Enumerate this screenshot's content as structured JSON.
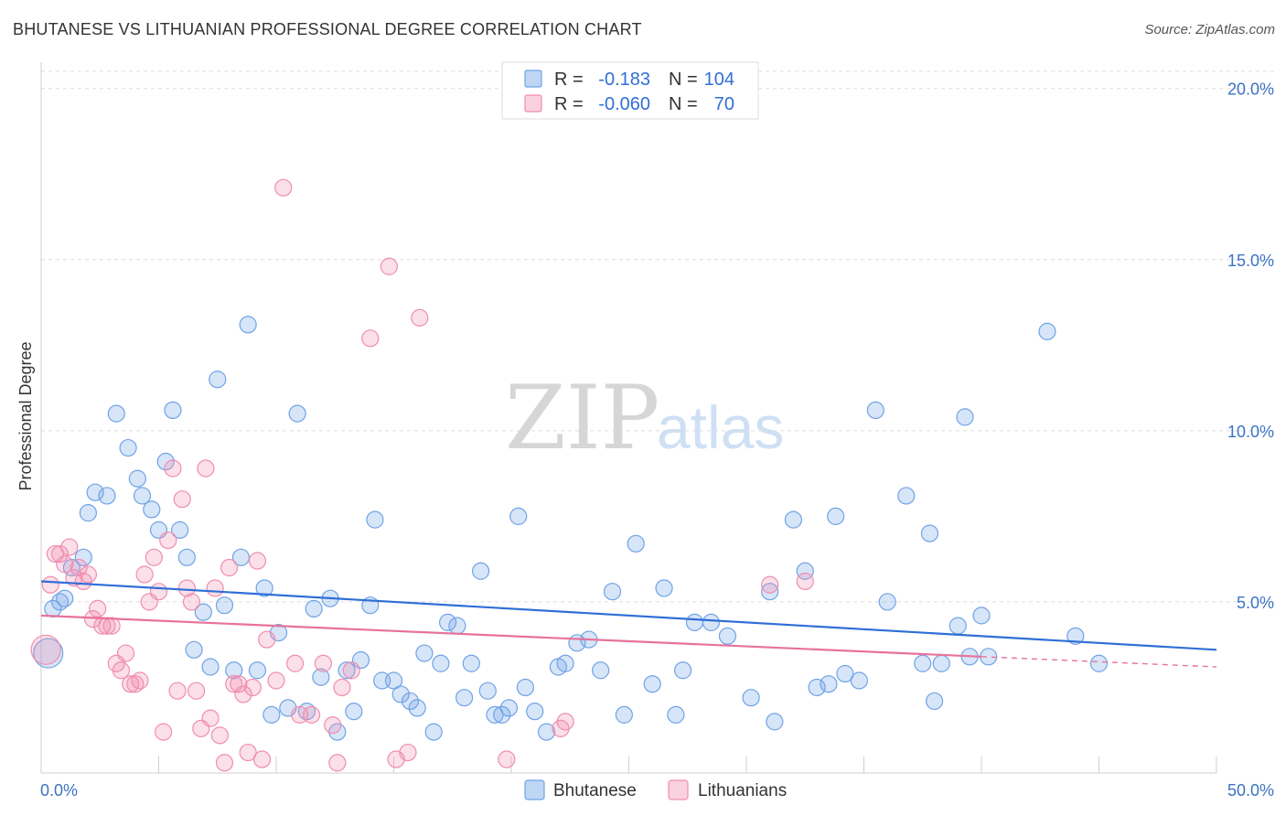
{
  "header": {
    "title": "BHUTANESE VS LITHUANIAN PROFESSIONAL DEGREE CORRELATION CHART",
    "source": "Source: ZipAtlas.com"
  },
  "legend": {
    "rows": [
      {
        "r_label": "R =",
        "r_value": "-0.183",
        "n_label": "N =",
        "n_value": "104",
        "color": "#6fa3e6"
      },
      {
        "r_label": "R =",
        "r_value": "-0.060",
        "n_label": "N =",
        "n_value": "70",
        "color": "#f08db0"
      }
    ]
  },
  "watermark": {
    "zip": "ZIP",
    "atlas": "atlas"
  },
  "chart_data": {
    "type": "scatter",
    "ylabel": "Professional Degree",
    "x_tick_labels": [
      "0.0%",
      "50.0%"
    ],
    "y_tick_labels": [
      "5.0%",
      "10.0%",
      "15.0%",
      "20.0%"
    ],
    "y_ticks": [
      5,
      10,
      15,
      20
    ],
    "xlim": [
      0,
      50
    ],
    "ylim": [
      0,
      20.5
    ],
    "grid": "horizontal dashed",
    "legend_placement": "top-center",
    "series": [
      {
        "name": "Bhutanese",
        "color": "#6fa3e6",
        "points": [
          [
            0.3,
            3.5
          ],
          [
            0.5,
            4.8
          ],
          [
            0.8,
            5.0
          ],
          [
            1.0,
            5.1
          ],
          [
            1.3,
            6.0
          ],
          [
            1.8,
            6.3
          ],
          [
            2.0,
            7.6
          ],
          [
            2.3,
            8.2
          ],
          [
            2.8,
            8.1
          ],
          [
            3.2,
            10.5
          ],
          [
            3.7,
            9.5
          ],
          [
            4.1,
            8.6
          ],
          [
            4.3,
            8.1
          ],
          [
            4.7,
            7.7
          ],
          [
            5.0,
            7.1
          ],
          [
            5.3,
            9.1
          ],
          [
            5.6,
            10.6
          ],
          [
            5.9,
            7.1
          ],
          [
            6.2,
            6.3
          ],
          [
            6.5,
            3.6
          ],
          [
            6.9,
            4.7
          ],
          [
            7.2,
            3.1
          ],
          [
            7.5,
            11.5
          ],
          [
            7.8,
            4.9
          ],
          [
            8.2,
            3.0
          ],
          [
            8.5,
            6.3
          ],
          [
            8.8,
            13.1
          ],
          [
            9.2,
            3.0
          ],
          [
            9.5,
            5.4
          ],
          [
            9.8,
            1.7
          ],
          [
            10.1,
            4.1
          ],
          [
            10.5,
            1.9
          ],
          [
            10.9,
            10.5
          ],
          [
            11.3,
            1.8
          ],
          [
            11.6,
            4.8
          ],
          [
            11.9,
            2.8
          ],
          [
            12.3,
            5.1
          ],
          [
            12.6,
            1.2
          ],
          [
            13.0,
            3.0
          ],
          [
            13.3,
            1.8
          ],
          [
            13.6,
            3.3
          ],
          [
            14.0,
            4.9
          ],
          [
            14.2,
            7.4
          ],
          [
            14.5,
            2.7
          ],
          [
            15.0,
            2.7
          ],
          [
            15.3,
            2.3
          ],
          [
            15.7,
            2.1
          ],
          [
            16.0,
            1.9
          ],
          [
            16.3,
            3.5
          ],
          [
            16.7,
            1.2
          ],
          [
            17.0,
            3.2
          ],
          [
            17.3,
            4.4
          ],
          [
            17.7,
            4.3
          ],
          [
            18.0,
            2.2
          ],
          [
            18.3,
            3.2
          ],
          [
            18.7,
            5.9
          ],
          [
            19.0,
            2.4
          ],
          [
            19.3,
            1.7
          ],
          [
            19.6,
            1.7
          ],
          [
            19.9,
            1.9
          ],
          [
            20.3,
            7.5
          ],
          [
            20.6,
            2.5
          ],
          [
            21.0,
            1.8
          ],
          [
            21.5,
            1.2
          ],
          [
            22.0,
            3.1
          ],
          [
            22.3,
            3.2
          ],
          [
            22.8,
            3.8
          ],
          [
            23.3,
            3.9
          ],
          [
            23.8,
            3.0
          ],
          [
            24.3,
            5.3
          ],
          [
            24.8,
            1.7
          ],
          [
            25.3,
            6.7
          ],
          [
            26.0,
            2.6
          ],
          [
            26.5,
            5.4
          ],
          [
            27.0,
            1.7
          ],
          [
            27.3,
            3.0
          ],
          [
            27.8,
            4.4
          ],
          [
            28.5,
            4.4
          ],
          [
            29.2,
            4.0
          ],
          [
            30.2,
            2.2
          ],
          [
            31.0,
            5.3
          ],
          [
            31.2,
            1.5
          ],
          [
            32.0,
            7.4
          ],
          [
            32.5,
            5.9
          ],
          [
            33.0,
            2.5
          ],
          [
            33.5,
            2.6
          ],
          [
            33.8,
            7.5
          ],
          [
            34.2,
            2.9
          ],
          [
            34.8,
            2.7
          ],
          [
            35.5,
            10.6
          ],
          [
            36.0,
            5.0
          ],
          [
            36.8,
            8.1
          ],
          [
            37.5,
            3.2
          ],
          [
            37.8,
            7.0
          ],
          [
            38.0,
            2.1
          ],
          [
            38.3,
            3.2
          ],
          [
            39.0,
            4.3
          ],
          [
            39.5,
            3.4
          ],
          [
            40.0,
            4.6
          ],
          [
            40.3,
            3.4
          ],
          [
            42.8,
            12.9
          ],
          [
            44.0,
            4.0
          ],
          [
            45.0,
            3.2
          ],
          [
            39.3,
            10.4
          ]
        ]
      },
      {
        "name": "Lithuanians",
        "color": "#f08db0",
        "points": [
          [
            0.2,
            3.6
          ],
          [
            0.4,
            5.5
          ],
          [
            0.6,
            6.4
          ],
          [
            0.8,
            6.4
          ],
          [
            1.0,
            6.1
          ],
          [
            1.2,
            6.6
          ],
          [
            1.4,
            5.7
          ],
          [
            1.6,
            6.0
          ],
          [
            1.8,
            5.6
          ],
          [
            2.0,
            5.8
          ],
          [
            2.2,
            4.5
          ],
          [
            2.4,
            4.8
          ],
          [
            2.6,
            4.3
          ],
          [
            2.8,
            4.3
          ],
          [
            3.0,
            4.3
          ],
          [
            3.2,
            3.2
          ],
          [
            3.4,
            3.0
          ],
          [
            3.6,
            3.5
          ],
          [
            3.8,
            2.6
          ],
          [
            4.0,
            2.6
          ],
          [
            4.2,
            2.7
          ],
          [
            4.4,
            5.8
          ],
          [
            4.6,
            5.0
          ],
          [
            4.8,
            6.3
          ],
          [
            5.0,
            5.3
          ],
          [
            5.2,
            1.2
          ],
          [
            5.4,
            6.8
          ],
          [
            5.6,
            8.9
          ],
          [
            5.8,
            2.4
          ],
          [
            6.0,
            8.0
          ],
          [
            6.2,
            5.4
          ],
          [
            6.4,
            5.0
          ],
          [
            6.6,
            2.4
          ],
          [
            6.8,
            1.3
          ],
          [
            7.0,
            8.9
          ],
          [
            7.2,
            1.6
          ],
          [
            7.4,
            5.4
          ],
          [
            7.6,
            1.1
          ],
          [
            7.8,
            0.3
          ],
          [
            8.0,
            6.0
          ],
          [
            8.2,
            2.6
          ],
          [
            8.4,
            2.6
          ],
          [
            8.6,
            2.3
          ],
          [
            8.8,
            0.6
          ],
          [
            9.0,
            2.5
          ],
          [
            9.2,
            6.2
          ],
          [
            9.4,
            0.4
          ],
          [
            9.6,
            3.9
          ],
          [
            10.0,
            2.7
          ],
          [
            10.3,
            17.1
          ],
          [
            10.8,
            3.2
          ],
          [
            11.0,
            1.7
          ],
          [
            11.5,
            1.7
          ],
          [
            12.0,
            3.2
          ],
          [
            12.4,
            1.4
          ],
          [
            12.6,
            0.3
          ],
          [
            12.8,
            2.5
          ],
          [
            13.2,
            3.0
          ],
          [
            14.0,
            12.7
          ],
          [
            14.8,
            14.8
          ],
          [
            15.1,
            0.4
          ],
          [
            15.6,
            0.6
          ],
          [
            16.1,
            13.3
          ],
          [
            19.8,
            0.4
          ],
          [
            22.1,
            1.3
          ],
          [
            22.3,
            1.5
          ],
          [
            31.0,
            5.5
          ],
          [
            32.5,
            5.6
          ]
        ]
      }
    ],
    "trend_lines": [
      {
        "series": "Bhutanese",
        "x": [
          0,
          50
        ],
        "y": [
          5.6,
          3.6
        ],
        "color": "#2f6fd6"
      },
      {
        "series": "Lithuanians",
        "x": [
          0,
          40
        ],
        "y": [
          4.6,
          3.4
        ],
        "dashed_to": [
          50,
          3.1
        ],
        "color": "#e7729b"
      }
    ]
  },
  "bottom_legend": {
    "items": [
      {
        "label": "Bhutanese",
        "color": "#6fa3e6"
      },
      {
        "label": "Lithuanians",
        "color": "#f08db0"
      }
    ]
  }
}
